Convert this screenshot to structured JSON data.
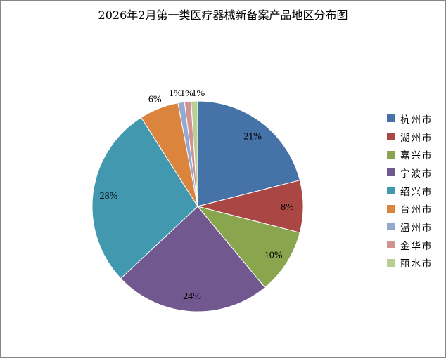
{
  "chart_data": {
    "type": "pie",
    "title": "2026年2月第一类医疗器械新备案产品地区分布图",
    "categories": [
      "杭州市",
      "湖州市",
      "嘉兴市",
      "宁波市",
      "绍兴市",
      "台州市",
      "温州市",
      "金华市",
      "丽水市"
    ],
    "values": [
      21,
      8,
      10,
      24,
      28,
      6,
      1,
      1,
      1
    ],
    "data_labels": [
      "21%",
      "8%",
      "10%",
      "24%",
      "28%",
      "6%",
      "1%",
      "1%",
      "1%"
    ],
    "colors": [
      "#4572a7",
      "#aa4643",
      "#89a54e",
      "#71588f",
      "#4198af",
      "#db843d",
      "#93a9cf",
      "#d19392",
      "#b9cd96"
    ],
    "legend_position": "right",
    "start_angle": "top, clockwise"
  }
}
